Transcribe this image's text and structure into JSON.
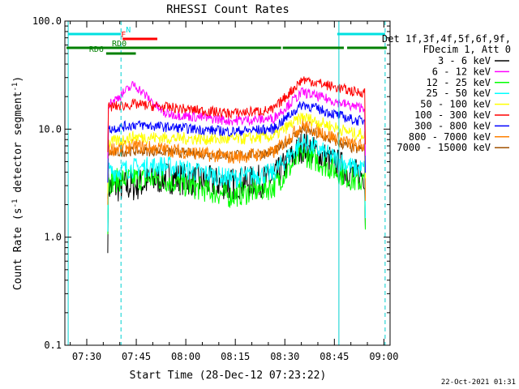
{
  "chart_data": {
    "type": "line",
    "title": "RHESSI Count Rates",
    "xlabel": "Start Time (28-Dec-12 07:23:22)",
    "ylabel_parts": [
      "Count Rate (s",
      "-1",
      " detector segment",
      "-1",
      ")"
    ],
    "y_scale": "log",
    "ylim": [
      0.1,
      100.0
    ],
    "y_ticks": [
      "0.1",
      "1.0",
      "10.0",
      "100.0"
    ],
    "x_ticks": [
      "07:30",
      "07:45",
      "08:00",
      "08:15",
      "08:30",
      "08:45",
      "09:00"
    ],
    "x_tick_minutes": [
      6.63,
      21.63,
      36.63,
      51.63,
      66.63,
      81.63,
      96.63
    ],
    "x_range_minutes": [
      0,
      98.5
    ],
    "legend_header": [
      "Det 1f,3f,4f,5f,6f,9f,",
      "FDecim 1, Att 0"
    ],
    "legend_position": "right",
    "footer_date": "22-Oct-2021 01:31",
    "series": [
      {
        "name": "3 - 6 keV",
        "color": "#000000",
        "level": [
          2.9,
          3.0,
          3.6,
          3.1,
          3.4,
          7.0,
          3.8
        ],
        "scatter": 0.16
      },
      {
        "name": "6 - 12 keV",
        "color": "#ff00ff",
        "level": [
          17,
          26,
          14,
          12,
          12.5,
          22,
          16
        ],
        "scatter": 0.05
      },
      {
        "name": "12 - 25 keV",
        "color": "#00ff00",
        "level": [
          3.3,
          3.5,
          3.4,
          2.4,
          2.9,
          6.0,
          3.3
        ],
        "scatter": 0.12
      },
      {
        "name": "25 - 50 keV",
        "color": "#00ffff",
        "level": [
          4.0,
          4.4,
          4.6,
          3.5,
          3.9,
          7.6,
          4.3
        ],
        "scatter": 0.1
      },
      {
        "name": "50 - 100 keV",
        "color": "#ffff00",
        "level": [
          7.5,
          8.5,
          8.3,
          8.0,
          8.5,
          13,
          9.0
        ],
        "scatter": 0.06
      },
      {
        "name": "100 - 300 keV",
        "color": "#ff0000",
        "level": [
          16,
          17,
          16,
          14,
          15,
          29,
          22
        ],
        "scatter": 0.05
      },
      {
        "name": "300 - 800 keV",
        "color": "#0000ff",
        "level": [
          10,
          11,
          10.5,
          9.5,
          10,
          17,
          12
        ],
        "scatter": 0.05
      },
      {
        "name": "800 - 7000 keV",
        "color": "#ff8000",
        "level": [
          6.5,
          7.0,
          6.5,
          5.5,
          6.0,
          11,
          7.0
        ],
        "scatter": 0.07
      },
      {
        "name": "7000 - 15000 keV",
        "color": "#a05000",
        "level": [
          6.0,
          6.3,
          6.2,
          5.7,
          6.0,
          10,
          6.5
        ],
        "scatter": 0.05
      }
    ],
    "level_minutes": [
      13.5,
      21,
      30,
      50,
      63,
      72,
      88
    ],
    "data_window_minutes": [
      13.0,
      91.0
    ],
    "attenuator_lines_minutes": [
      1.0,
      17.0,
      83.0,
      97.0
    ],
    "flag_bars": [
      {
        "label": "N",
        "color": "#00e0e0",
        "segments": [
          [
            1,
            17
          ],
          [
            82.5,
            97
          ]
        ]
      },
      {
        "label": "F",
        "color": "#ff0000",
        "segments": [
          [
            17.5,
            28
          ]
        ]
      },
      {
        "label": "RD0",
        "color": "#008000",
        "segments": [
          [
            0.5,
            65.5
          ],
          [
            66,
            84.5
          ],
          [
            85.5,
            97.5
          ]
        ]
      },
      {
        "label": "RD6",
        "color": "#008000",
        "segments": [
          [
            12.5,
            21.5
          ]
        ]
      }
    ]
  }
}
